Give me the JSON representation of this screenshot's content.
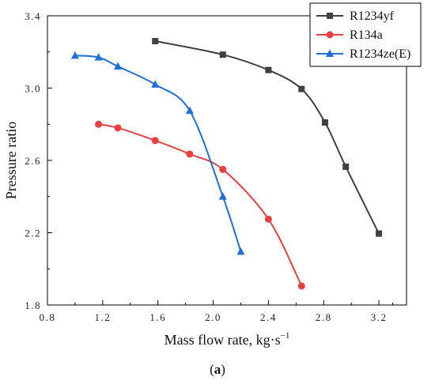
{
  "caption": {
    "open": "(",
    "letter": "a",
    "close": ")"
  },
  "chart_data": {
    "type": "line",
    "xlabel": "Mass flow rate, kg·s",
    "xlabel_sup": "−1",
    "ylabel": "Pressure ratio",
    "xlim": [
      0.8,
      3.4
    ],
    "ylim": [
      1.8,
      3.4
    ],
    "xticks": [
      0.8,
      1.2,
      1.6,
      2.0,
      2.4,
      2.8,
      3.2
    ],
    "xtick_labels": [
      "0.8",
      "1.2",
      "1.6",
      "2.0",
      "2.4",
      "2.8",
      "3.2"
    ],
    "yticks": [
      1.8,
      2.2,
      2.6,
      3.0,
      3.4
    ],
    "ytick_labels": [
      "1.8",
      "2.2",
      "2.6",
      "3.0",
      "3.4"
    ],
    "grid": false,
    "legend_position": "top-right",
    "series": [
      {
        "name": "R1234yf",
        "color": "#404040",
        "marker": "square",
        "x": [
          1.58,
          2.07,
          2.4,
          2.64,
          2.81,
          2.96,
          3.2
        ],
        "y": [
          3.26,
          3.185,
          3.1,
          2.995,
          2.81,
          2.565,
          2.195
        ]
      },
      {
        "name": "R134a",
        "color": "#e84040",
        "marker": "circle",
        "x": [
          1.17,
          1.31,
          1.58,
          1.83,
          2.07,
          2.4,
          2.64
        ],
        "y": [
          2.8,
          2.78,
          2.71,
          2.635,
          2.55,
          2.275,
          1.905
        ]
      },
      {
        "name": "R1234ze(E)",
        "color": "#1f6fd6",
        "marker": "triangle",
        "x": [
          1.0,
          1.17,
          1.31,
          1.58,
          1.83,
          2.07,
          2.2
        ],
        "y": [
          3.18,
          3.17,
          3.12,
          3.02,
          2.875,
          2.4,
          2.095
        ]
      }
    ]
  }
}
